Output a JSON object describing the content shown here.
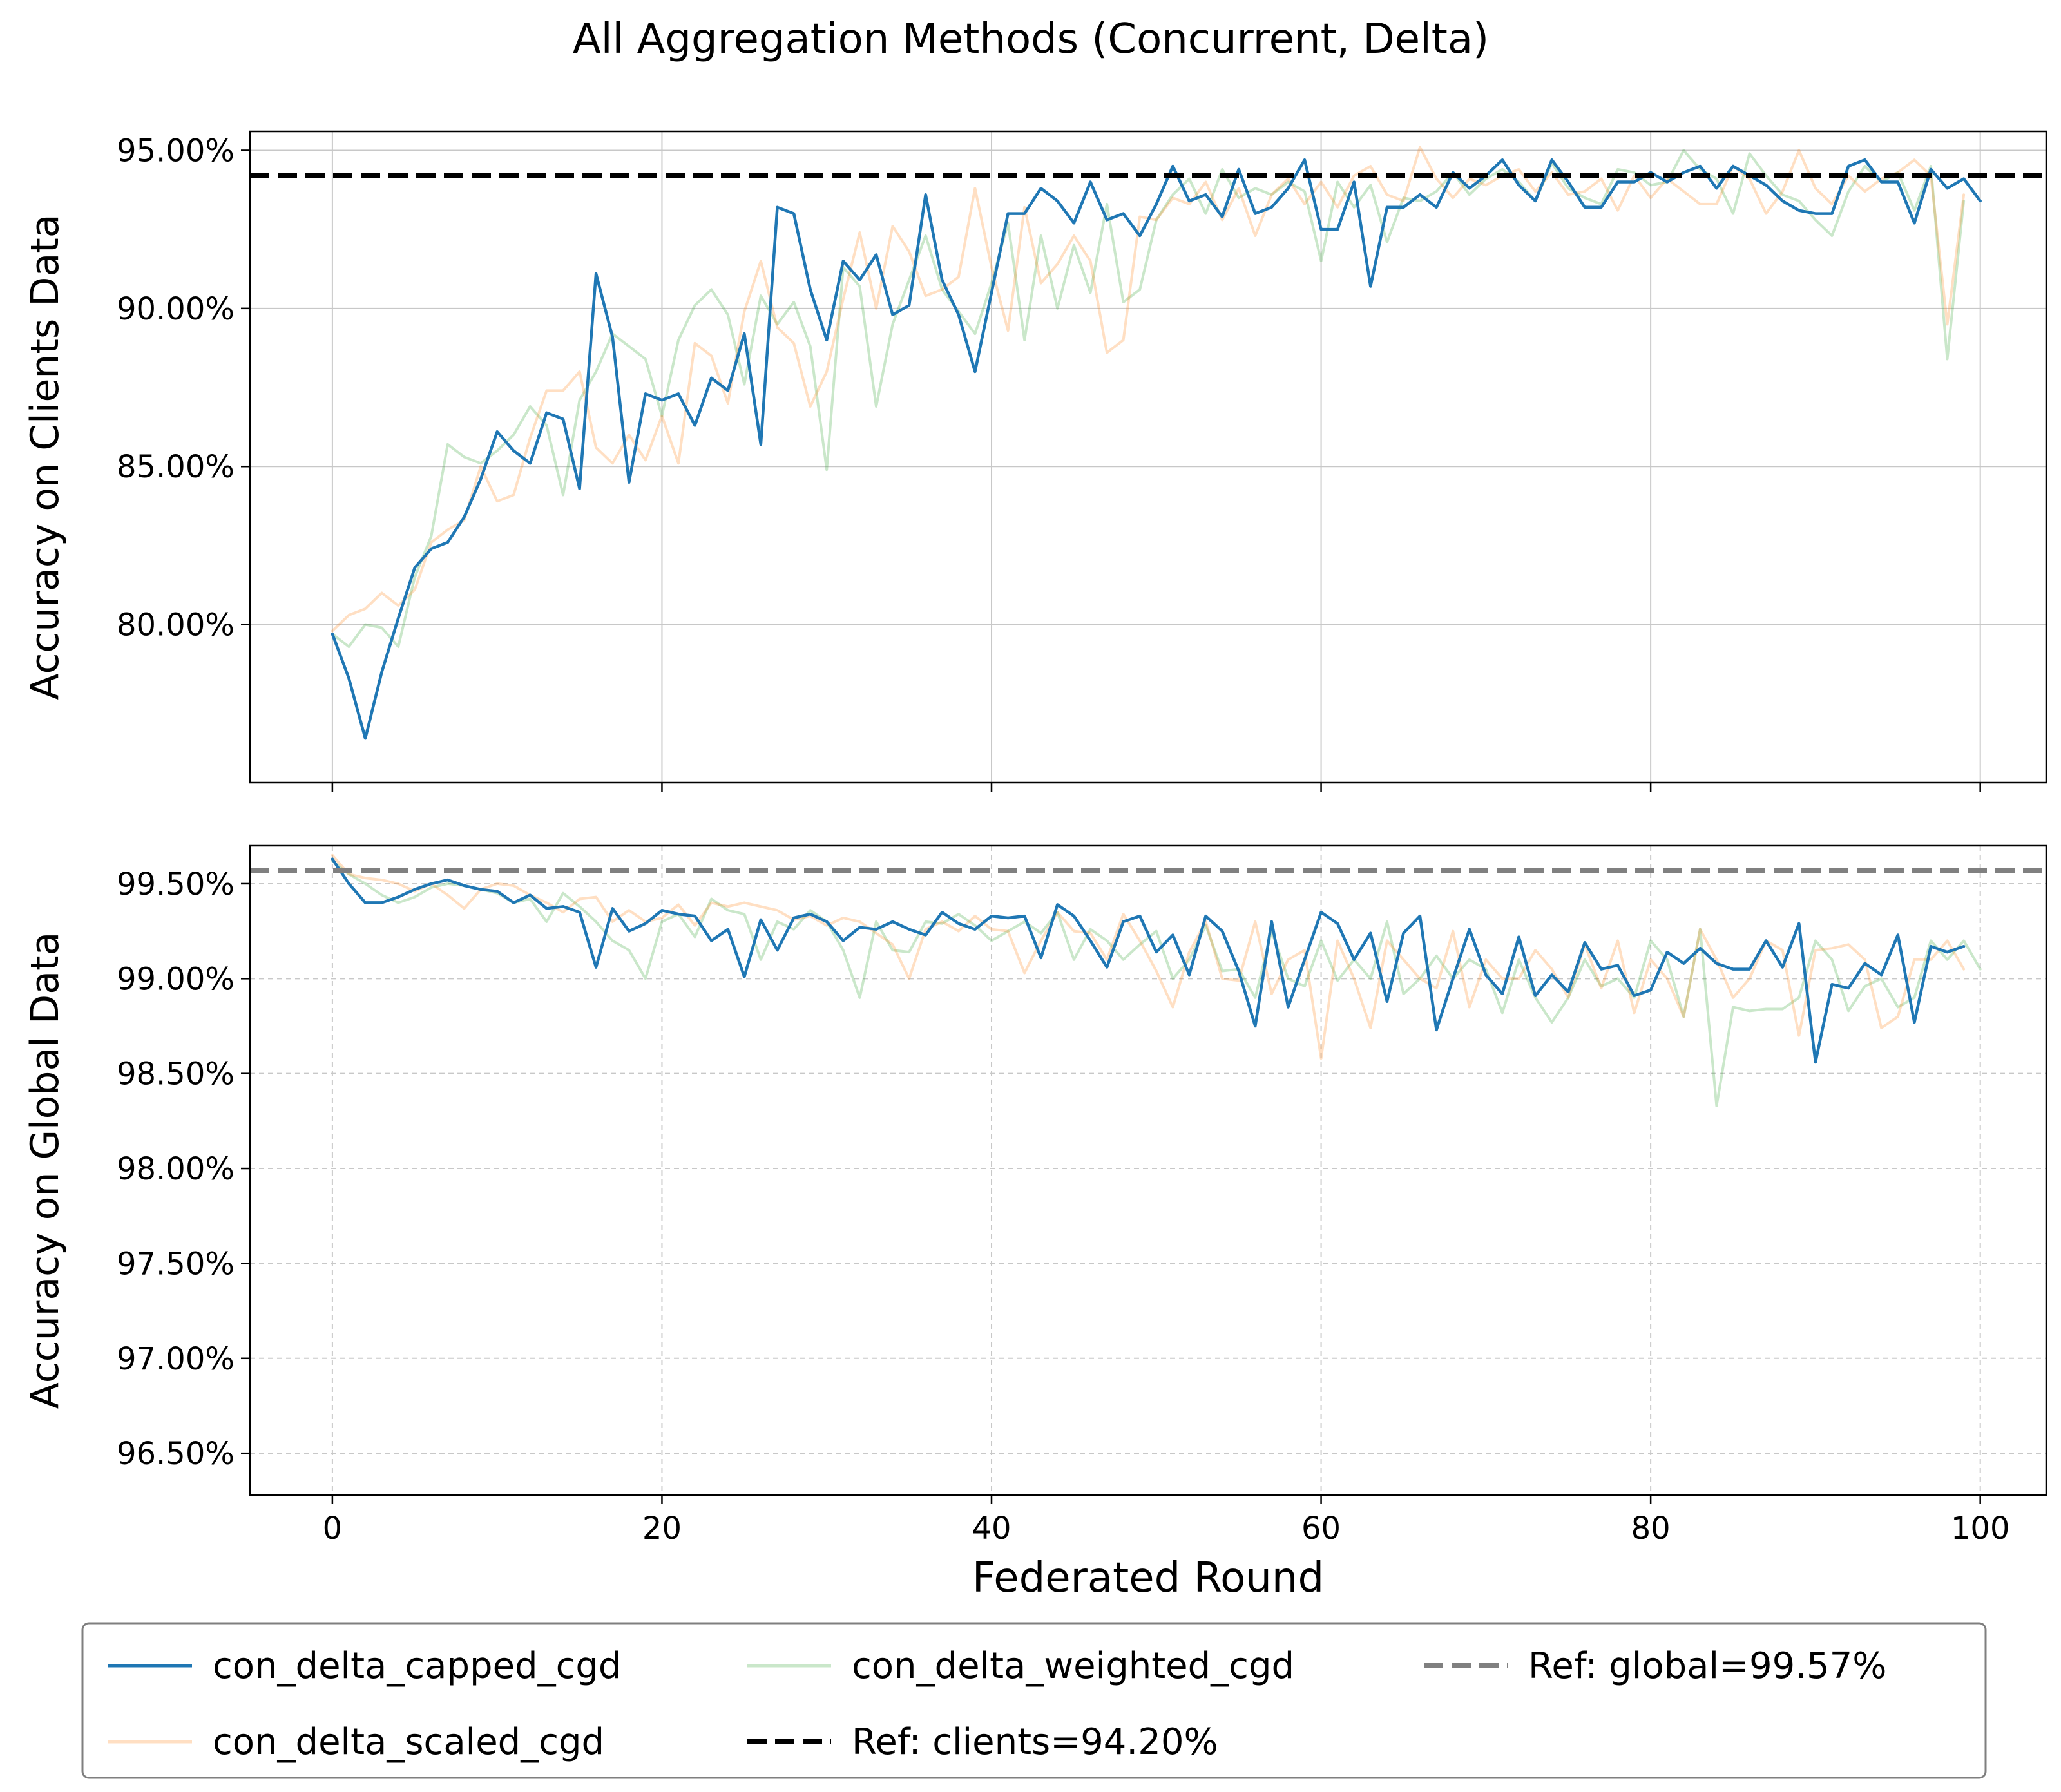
{
  "title": "All Aggregation Methods (Concurrent, Delta)",
  "colors": {
    "capped": "#1f77b4",
    "scaled": "#ff7f0e",
    "weighted": "#2ca02c",
    "ref_clients": "#000000",
    "ref_global": "#808080"
  },
  "legend": {
    "position": "bottom-center",
    "items": [
      {
        "label": "con_delta_capped_cgd",
        "key": "capped",
        "style": "solid"
      },
      {
        "label": "con_delta_scaled_cgd",
        "key": "scaled",
        "style": "solid-faint"
      },
      {
        "label": "con_delta_weighted_cgd",
        "key": "weighted",
        "style": "solid-faint"
      },
      {
        "label": "Ref: clients=94.20%",
        "key": "ref_clients",
        "style": "dashed"
      },
      {
        "label": "Ref: global=99.57%",
        "key": "ref_global",
        "style": "dashed"
      }
    ]
  },
  "chart_data": [
    {
      "type": "line",
      "ylabel": "Accuracy on Clients Data",
      "xlabel": "",
      "xlim": [
        -5,
        104
      ],
      "ylim": [
        75.0,
        95.6
      ],
      "x_ticks": [
        0,
        20,
        40,
        60,
        80,
        100
      ],
      "y_ticks": [
        80,
        85,
        90,
        95
      ],
      "y_tick_labels": [
        "80.00%",
        "85.00%",
        "90.00%",
        "95.00%"
      ],
      "grid": "solid",
      "reference": {
        "label": "Ref: clients=94.20%",
        "value": 94.2,
        "color_key": "ref_clients"
      },
      "series": [
        {
          "name": "con_delta_weighted_cgd",
          "key": "weighted",
          "values": [
            79.7,
            79.3,
            80.0,
            79.9,
            79.3,
            81.5,
            82.8,
            85.7,
            85.3,
            85.1,
            85.5,
            86.0,
            86.9,
            86.3,
            84.1,
            87.1,
            88.0,
            89.2,
            88.8,
            88.4,
            86.6,
            89.0,
            90.1,
            90.6,
            89.8,
            87.6,
            90.4,
            89.5,
            90.2,
            88.8,
            84.9,
            91.3,
            90.7,
            86.9,
            89.5,
            90.9,
            92.3,
            90.6,
            89.9,
            89.2,
            90.8,
            92.7,
            89.0,
            92.3,
            90.0,
            92.0,
            90.5,
            93.3,
            90.2,
            90.6,
            92.8,
            93.6,
            94.1,
            93.0,
            94.4,
            93.5,
            93.8,
            93.6,
            94.0,
            93.7,
            91.5,
            94.0,
            93.2,
            93.9,
            92.1,
            93.5,
            93.4,
            93.7,
            94.3,
            93.6,
            94.1,
            94.4,
            94.0,
            93.4,
            94.6,
            93.8,
            93.5,
            93.3,
            94.4,
            94.3,
            93.9,
            94.0,
            95.0,
            94.4,
            94.1,
            93.0,
            94.9,
            94.2,
            93.6,
            93.4,
            92.8,
            92.3,
            93.7,
            94.5,
            94.0,
            94.3,
            93.1,
            94.5,
            88.4,
            93.4
          ]
        },
        {
          "name": "con_delta_scaled_cgd",
          "key": "scaled",
          "values": [
            79.8,
            80.3,
            80.5,
            81.0,
            80.6,
            81.1,
            82.6,
            83.0,
            83.3,
            85.0,
            83.9,
            84.1,
            85.9,
            87.4,
            87.4,
            88.0,
            85.6,
            85.1,
            86.0,
            85.2,
            86.6,
            85.1,
            88.9,
            88.5,
            87.0,
            89.9,
            91.5,
            89.4,
            88.9,
            86.9,
            88.0,
            90.3,
            92.4,
            90.0,
            92.6,
            91.8,
            90.4,
            90.6,
            91.0,
            93.8,
            91.3,
            89.3,
            93.2,
            90.8,
            91.4,
            92.3,
            91.5,
            88.6,
            89.0,
            92.9,
            92.8,
            93.5,
            93.3,
            94.0,
            92.8,
            93.8,
            92.3,
            93.6,
            94.1,
            93.3,
            94.0,
            93.2,
            94.2,
            94.5,
            93.6,
            93.4,
            95.1,
            94.1,
            93.5,
            94.1,
            93.9,
            94.2,
            94.4,
            93.7,
            94.3,
            93.6,
            93.7,
            94.1,
            93.1,
            94.2,
            93.5,
            94.1,
            93.7,
            93.3,
            93.3,
            94.5,
            94.1,
            93.0,
            93.7,
            95.0,
            93.8,
            93.3,
            94.2,
            93.7,
            94.1,
            94.3,
            94.7,
            94.2,
            89.5,
            93.6
          ]
        },
        {
          "name": "con_delta_capped_cgd",
          "key": "capped",
          "values": [
            79.7,
            78.3,
            76.4,
            78.5,
            80.2,
            81.8,
            82.4,
            82.6,
            83.4,
            84.6,
            86.1,
            85.5,
            85.1,
            86.7,
            86.5,
            84.3,
            91.1,
            89.1,
            84.5,
            87.3,
            87.1,
            87.3,
            86.3,
            87.8,
            87.4,
            89.2,
            85.7,
            93.2,
            93.0,
            90.6,
            89.0,
            91.5,
            90.9,
            91.7,
            89.8,
            90.1,
            93.6,
            90.9,
            89.8,
            88.0,
            90.5,
            93.0,
            93.0,
            93.8,
            93.4,
            92.7,
            94.0,
            92.8,
            93.0,
            92.3,
            93.3,
            94.5,
            93.4,
            93.6,
            92.9,
            94.4,
            93.0,
            93.2,
            93.8,
            94.7,
            92.5,
            92.5,
            94.0,
            90.7,
            93.2,
            93.2,
            93.6,
            93.2,
            94.3,
            93.8,
            94.2,
            94.7,
            93.9,
            93.4,
            94.7,
            94.0,
            93.2,
            93.2,
            94.0,
            94.0,
            94.3,
            94.0,
            94.3,
            94.5,
            93.8,
            94.5,
            94.2,
            93.9,
            93.4,
            93.1,
            93.0,
            93.0,
            94.5,
            94.7,
            94.0,
            94.0,
            92.7,
            94.4,
            93.8,
            94.1,
            93.4
          ]
        }
      ]
    },
    {
      "type": "line",
      "ylabel": "Accuracy on Global Data",
      "xlabel": "Federated Round",
      "xlim": [
        -5,
        104
      ],
      "ylim": [
        96.28,
        99.7
      ],
      "x_ticks": [
        0,
        20,
        40,
        60,
        80,
        100
      ],
      "x_tick_labels": [
        "0",
        "20",
        "40",
        "60",
        "80",
        "100"
      ],
      "y_ticks": [
        96.5,
        97.0,
        97.5,
        98.0,
        98.5,
        99.0,
        99.5
      ],
      "y_tick_labels": [
        "96.50%",
        "97.00%",
        "97.50%",
        "98.00%",
        "98.50%",
        "99.00%",
        "99.50%"
      ],
      "grid": "dashed",
      "reference": {
        "label": "Ref: global=99.57%",
        "value": 99.57,
        "color_key": "ref_global"
      },
      "series": [
        {
          "name": "con_delta_weighted_cgd",
          "key": "weighted",
          "values": [
            99.62,
            99.55,
            99.5,
            99.44,
            99.4,
            99.43,
            99.48,
            99.5,
            99.49,
            99.47,
            99.45,
            99.4,
            99.42,
            99.3,
            99.45,
            99.38,
            99.3,
            99.2,
            99.15,
            99.0,
            99.3,
            99.34,
            99.22,
            99.42,
            99.36,
            99.34,
            99.1,
            99.3,
            99.26,
            99.36,
            99.3,
            99.15,
            98.9,
            99.3,
            99.15,
            99.14,
            99.3,
            99.29,
            99.34,
            99.28,
            99.2,
            99.25,
            99.3,
            99.24,
            99.35,
            99.1,
            99.26,
            99.2,
            99.1,
            99.18,
            99.25,
            99.0,
            99.1,
            99.28,
            99.04,
            99.05,
            98.9,
            99.25,
            99.0,
            98.96,
            99.2,
            98.99,
            99.1,
            99.0,
            99.3,
            98.92,
            99.0,
            99.12,
            99.0,
            99.1,
            99.05,
            98.82,
            99.1,
            98.9,
            98.77,
            98.9,
            99.1,
            98.96,
            99.0,
            98.9,
            99.2,
            99.1,
            98.8,
            99.26,
            98.33,
            98.85,
            98.83,
            98.84,
            98.84,
            98.9,
            99.2,
            99.1,
            98.83,
            98.96,
            99.0,
            98.85,
            98.9,
            99.2,
            99.1,
            99.2,
            99.05
          ]
        },
        {
          "name": "con_delta_scaled_cgd",
          "key": "scaled",
          "values": [
            99.65,
            99.55,
            99.53,
            99.52,
            99.5,
            99.46,
            99.5,
            99.44,
            99.37,
            99.47,
            99.5,
            99.49,
            99.44,
            99.4,
            99.35,
            99.42,
            99.43,
            99.3,
            99.36,
            99.3,
            99.32,
            99.39,
            99.28,
            99.4,
            99.38,
            99.4,
            99.38,
            99.36,
            99.31,
            99.33,
            99.28,
            99.32,
            99.3,
            99.24,
            99.18,
            99.0,
            99.26,
            99.3,
            99.25,
            99.33,
            99.26,
            99.25,
            99.03,
            99.2,
            99.35,
            99.25,
            99.24,
            99.1,
            99.34,
            99.2,
            99.04,
            98.85,
            99.14,
            99.3,
            99.0,
            98.99,
            99.3,
            98.92,
            99.1,
            99.15,
            98.58,
            99.2,
            99.0,
            98.74,
            99.2,
            99.1,
            99.0,
            98.95,
            99.25,
            98.85,
            99.1,
            99.0,
            99.0,
            99.15,
            99.05,
            98.9,
            99.18,
            98.95,
            99.2,
            98.82,
            99.1,
            99.0,
            98.8,
            99.26,
            99.1,
            98.9,
            99.0,
            99.2,
            99.15,
            98.7,
            99.15,
            99.16,
            99.18,
            99.1,
            98.74,
            98.8,
            99.1,
            99.1,
            99.2,
            99.05
          ]
        },
        {
          "name": "con_delta_capped_cgd",
          "key": "capped",
          "values": [
            99.63,
            99.5,
            99.4,
            99.4,
            99.43,
            99.47,
            99.5,
            99.52,
            99.49,
            99.47,
            99.46,
            99.4,
            99.44,
            99.37,
            99.38,
            99.35,
            99.06,
            99.37,
            99.25,
            99.29,
            99.36,
            99.34,
            99.33,
            99.2,
            99.26,
            99.01,
            99.31,
            99.15,
            99.32,
            99.34,
            99.3,
            99.2,
            99.27,
            99.26,
            99.3,
            99.26,
            99.23,
            99.35,
            99.29,
            99.26,
            99.33,
            99.32,
            99.33,
            99.11,
            99.39,
            99.33,
            99.2,
            99.06,
            99.3,
            99.33,
            99.14,
            99.23,
            99.02,
            99.33,
            99.25,
            99.04,
            98.75,
            99.3,
            98.85,
            99.1,
            99.35,
            99.29,
            99.1,
            99.24,
            98.88,
            99.24,
            99.33,
            98.73,
            99.0,
            99.26,
            99.02,
            98.92,
            99.22,
            98.91,
            99.02,
            98.93,
            99.19,
            99.05,
            99.07,
            98.91,
            98.94,
            99.14,
            99.08,
            99.16,
            99.08,
            99.05,
            99.05,
            99.2,
            99.06,
            99.29,
            98.56,
            98.97,
            98.95,
            99.08,
            99.02,
            99.23,
            98.77,
            99.17,
            99.14,
            99.17
          ]
        }
      ]
    }
  ]
}
